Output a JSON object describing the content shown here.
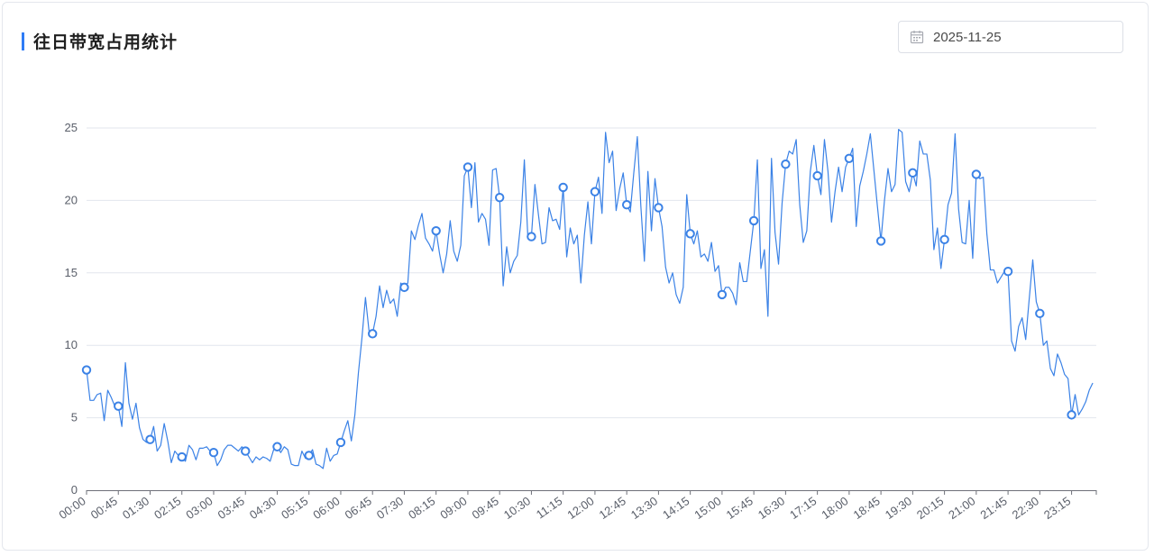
{
  "header": {
    "title": "往日带宽占用统计",
    "date_value": "2025-11-25",
    "accent_color": "#2f7cf6"
  },
  "chart_data": {
    "type": "line",
    "title": "往日带宽占用统计",
    "xlabel": "",
    "ylabel": "",
    "ylim": [
      0,
      25
    ],
    "y_ticks": [
      0,
      5,
      10,
      15,
      20,
      25
    ],
    "grid": true,
    "line_color": "#3b82e6",
    "x_tick_labels": [
      "00:00",
      "00:45",
      "01:30",
      "02:15",
      "03:00",
      "03:45",
      "04:30",
      "05:15",
      "06:00",
      "06:45",
      "07:30",
      "08:15",
      "09:00",
      "09:45",
      "10:30",
      "11:15",
      "12:00",
      "12:45",
      "13:30",
      "14:15",
      "15:00",
      "15:45",
      "16:30",
      "17:15",
      "18:00",
      "18:45",
      "19:30",
      "20:15",
      "21:00",
      "21:45",
      "22:30",
      "23:15"
    ],
    "x_interval_minutes": 5,
    "marker_every": 9,
    "values": [
      8.3,
      6.2,
      6.2,
      6.6,
      6.7,
      4.8,
      6.9,
      6.4,
      5.8,
      5.8,
      4.4,
      8.8,
      6.0,
      4.9,
      6.0,
      4.3,
      3.5,
      3.3,
      3.5,
      4.4,
      2.7,
      3.1,
      4.6,
      3.4,
      1.9,
      2.7,
      2.4,
      2.3,
      2.0,
      3.1,
      2.8,
      2.1,
      2.9,
      2.9,
      3.0,
      2.7,
      2.6,
      1.7,
      2.1,
      2.8,
      3.1,
      3.1,
      2.9,
      2.7,
      3.0,
      2.7,
      2.3,
      1.9,
      2.3,
      2.1,
      2.3,
      2.2,
      2.0,
      2.8,
      3.0,
      2.6,
      3.0,
      2.8,
      1.8,
      1.7,
      1.7,
      2.7,
      2.2,
      2.4,
      2.8,
      1.8,
      1.7,
      1.5,
      2.9,
      2.0,
      2.4,
      2.5,
      3.3,
      4.1,
      4.8,
      3.4,
      5.2,
      8.1,
      10.5,
      13.3,
      11.0,
      10.8,
      12.0,
      14.1,
      12.6,
      13.8,
      12.9,
      13.2,
      12.0,
      14.3,
      14.0,
      14.3,
      17.9,
      17.3,
      18.3,
      19.1,
      17.4,
      17.0,
      16.5,
      17.9,
      16.3,
      15.0,
      16.3,
      18.6,
      16.5,
      15.8,
      16.9,
      21.7,
      22.3,
      19.5,
      22.6,
      18.5,
      19.1,
      18.7,
      16.9,
      22.1,
      22.2,
      20.2,
      14.1,
      16.8,
      15.0,
      15.8,
      16.2,
      18.5,
      22.8,
      17.4,
      17.5,
      21.1,
      19.0,
      17.0,
      17.1,
      19.5,
      18.6,
      18.7,
      18.0,
      20.9,
      16.1,
      18.1,
      17.0,
      17.6,
      14.3,
      17.6,
      19.9,
      17.0,
      20.6,
      21.6,
      19.1,
      24.7,
      22.6,
      23.4,
      19.3,
      20.8,
      21.9,
      19.7,
      19.2,
      21.9,
      24.4,
      19.6,
      15.8,
      22.0,
      17.9,
      21.5,
      19.5,
      18.2,
      15.4,
      14.3,
      15.0,
      13.5,
      12.9,
      14.0,
      20.4,
      17.7,
      17.0,
      17.9,
      16.1,
      16.3,
      15.8,
      17.1,
      15.1,
      15.5,
      13.5,
      14.0,
      14.0,
      13.6,
      12.8,
      15.7,
      14.4,
      14.4,
      16.5,
      18.6,
      22.8,
      15.3,
      16.6,
      12.0,
      22.9,
      17.8,
      15.6,
      19.8,
      22.5,
      23.4,
      23.2,
      24.2,
      19.7,
      17.1,
      17.9,
      22.0,
      23.8,
      21.7,
      20.4,
      24.2,
      22.0,
      18.5,
      20.6,
      22.3,
      20.6,
      22.3,
      22.9,
      23.6,
      18.2,
      21.0,
      22.0,
      23.2,
      24.6,
      22.1,
      19.6,
      17.2,
      20.0,
      22.2,
      20.6,
      21.1,
      24.9,
      24.7,
      21.3,
      20.6,
      21.9,
      21.0,
      24.1,
      23.2,
      23.2,
      21.4,
      16.6,
      18.1,
      15.3,
      17.3,
      19.7,
      20.5,
      24.6,
      19.4,
      17.1,
      17.0,
      20.0,
      16.0,
      21.8,
      21.5,
      21.6,
      17.7,
      15.2,
      15.2,
      14.3,
      14.7,
      15.1,
      15.1,
      10.3,
      9.6,
      11.3,
      11.9,
      10.4,
      13.2,
      15.9,
      13.0,
      12.2,
      10.0,
      10.3,
      8.4,
      7.9,
      9.4,
      8.8,
      8.0,
      7.7,
      5.2,
      6.6,
      5.2,
      5.6,
      6.1,
      6.9,
      7.4
    ]
  }
}
